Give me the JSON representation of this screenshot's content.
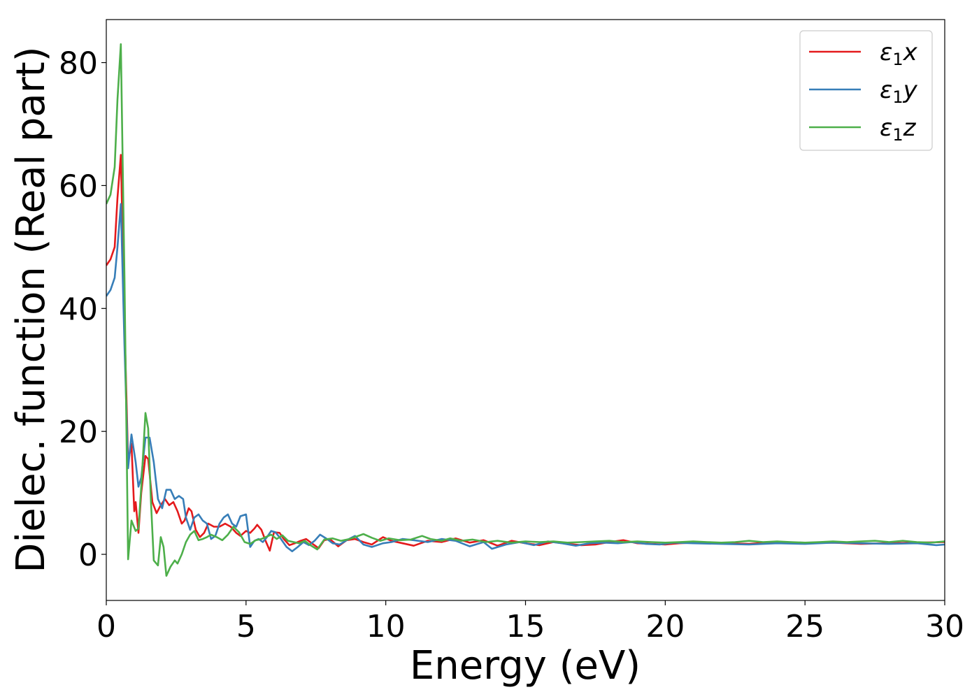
{
  "chart_data": {
    "type": "line",
    "title": "",
    "xlabel": "Energy (eV)",
    "ylabel": "Dielec. function (Real part)",
    "xlim": [
      0,
      30
    ],
    "ylim": [
      -7.5,
      87
    ],
    "xticks": [
      0,
      5,
      10,
      15,
      20,
      25,
      30
    ],
    "xtick_labels": [
      "0",
      "5",
      "10",
      "15",
      "20",
      "25",
      "30"
    ],
    "yticks": [
      0,
      20,
      40,
      60,
      80
    ],
    "ytick_labels": [
      "0",
      "20",
      "40",
      "60",
      "80"
    ],
    "grid": false,
    "legend_position": "top-right",
    "series": [
      {
        "name": "ε₁x",
        "legend": {
          "symbol": "ε",
          "sub": "1",
          "axis": "x"
        },
        "color": "#e41a1c",
        "x": [
          0,
          0.15,
          0.3,
          0.4,
          0.52,
          0.65,
          0.78,
          0.9,
          1.0,
          1.05,
          1.15,
          1.25,
          1.4,
          1.5,
          1.65,
          1.8,
          1.95,
          2.1,
          2.25,
          2.4,
          2.55,
          2.7,
          2.8,
          2.95,
          3.05,
          3.2,
          3.35,
          3.5,
          3.65,
          3.85,
          4.05,
          4.25,
          4.45,
          4.65,
          4.8,
          5.0,
          5.15,
          5.3,
          5.4,
          5.55,
          5.7,
          5.85,
          6.0,
          6.2,
          6.35,
          6.55,
          6.75,
          6.95,
          7.15,
          7.35,
          7.6,
          7.8,
          8.0,
          8.3,
          8.6,
          8.9,
          9.2,
          9.5,
          9.9,
          10.2,
          10.6,
          11.0,
          11.5,
          12.0,
          12.5,
          13.0,
          13.5,
          14.0,
          14.5,
          15.0,
          15.5,
          16.0,
          16.5,
          17.0,
          17.5,
          18.0,
          18.5,
          19.0,
          19.5,
          20.0,
          20.5,
          21.0,
          22.0,
          23.0,
          24.0,
          25.0,
          26.0,
          27.0,
          28.0,
          29.0,
          30.0
        ],
        "y": [
          47,
          48,
          50,
          58,
          65,
          38,
          15,
          18,
          7,
          8.5,
          3.5,
          10,
          16,
          15.5,
          8.5,
          6.7,
          8,
          9,
          8,
          8.5,
          7,
          5,
          5.5,
          7.5,
          7,
          4,
          2.8,
          3.5,
          5,
          4.5,
          4.5,
          5,
          4.5,
          3.5,
          3,
          3.8,
          3.5,
          4.2,
          4.8,
          4,
          2.2,
          0.6,
          3.6,
          3.5,
          2.5,
          1.5,
          1.8,
          2.2,
          2.5,
          1.8,
          1.0,
          2.3,
          2.5,
          1.3,
          2.3,
          2.5,
          2.0,
          1.6,
          2.8,
          2.2,
          1.8,
          1.4,
          2.2,
          2.0,
          2.6,
          1.9,
          2.3,
          1.4,
          2.2,
          1.8,
          1.5,
          2.0,
          1.7,
          1.5,
          1.6,
          2.0,
          2.3,
          1.8,
          1.7,
          1.6,
          1.8,
          1.9,
          1.8,
          1.7,
          2.0,
          1.8,
          1.9,
          1.7,
          1.8,
          1.9,
          2.0
        ]
      },
      {
        "name": "ε₁y",
        "legend": {
          "symbol": "ε",
          "sub": "1",
          "axis": "y"
        },
        "color": "#377eb8",
        "x": [
          0,
          0.15,
          0.3,
          0.4,
          0.52,
          0.65,
          0.78,
          0.9,
          1.05,
          1.15,
          1.25,
          1.4,
          1.55,
          1.7,
          1.85,
          2.0,
          2.15,
          2.3,
          2.45,
          2.6,
          2.75,
          2.85,
          3.0,
          3.15,
          3.3,
          3.45,
          3.6,
          3.75,
          3.9,
          4.05,
          4.2,
          4.35,
          4.5,
          4.65,
          4.8,
          5.0,
          5.15,
          5.3,
          5.45,
          5.6,
          5.75,
          5.9,
          6.05,
          6.25,
          6.45,
          6.65,
          6.85,
          7.05,
          7.25,
          7.45,
          7.65,
          7.9,
          8.1,
          8.35,
          8.6,
          8.9,
          9.2,
          9.5,
          9.9,
          10.2,
          10.6,
          11.0,
          11.5,
          12.0,
          12.5,
          13.0,
          13.5,
          13.8,
          14.3,
          14.8,
          15.3,
          15.8,
          16.3,
          16.8,
          17.3,
          17.8,
          18.3,
          18.8,
          19.3,
          19.8,
          20.3,
          21.0,
          22.0,
          23.0,
          24.0,
          25.0,
          26.0,
          27.0,
          28.0,
          29.0,
          29.7,
          30.0
        ],
        "y": [
          42,
          43,
          45,
          50,
          57,
          34,
          14,
          19.5,
          15,
          11,
          12.5,
          19,
          19,
          15,
          9,
          7.5,
          10.5,
          10.5,
          9,
          9.5,
          9,
          6,
          4,
          6,
          6.5,
          5.5,
          5,
          2.5,
          3,
          5,
          6,
          6.5,
          5,
          4.5,
          6.2,
          6.5,
          1.2,
          2.2,
          2.5,
          2,
          2.8,
          3.8,
          3.6,
          2.5,
          1.2,
          0.5,
          1.2,
          2.0,
          1.5,
          2.2,
          3.2,
          2.5,
          1.8,
          1.6,
          2.3,
          3.0,
          1.6,
          1.2,
          1.8,
          2.0,
          2.5,
          2.3,
          2.0,
          2.5,
          2.2,
          1.3,
          2.0,
          0.9,
          1.6,
          2.0,
          1.5,
          2.1,
          1.8,
          1.4,
          1.8,
          1.9,
          1.8,
          2.0,
          1.7,
          1.6,
          1.9,
          1.8,
          1.7,
          1.6,
          1.8,
          1.7,
          1.9,
          1.8,
          1.7,
          1.8,
          1.5,
          1.6
        ]
      },
      {
        "name": "ε₁z",
        "legend": {
          "symbol": "ε",
          "sub": "1",
          "axis": "z"
        },
        "color": "#4daf4a",
        "x": [
          0,
          0.15,
          0.3,
          0.4,
          0.52,
          0.65,
          0.78,
          0.9,
          1.05,
          1.15,
          1.25,
          1.4,
          1.5,
          1.6,
          1.7,
          1.85,
          1.95,
          2.05,
          2.15,
          2.3,
          2.45,
          2.55,
          2.7,
          2.85,
          3.0,
          3.15,
          3.3,
          3.45,
          3.6,
          3.75,
          3.95,
          4.15,
          4.35,
          4.55,
          4.75,
          4.95,
          5.15,
          5.35,
          5.55,
          5.7,
          5.9,
          6.1,
          6.3,
          6.5,
          6.7,
          6.9,
          7.1,
          7.3,
          7.55,
          7.8,
          8.1,
          8.4,
          8.7,
          8.9,
          9.2,
          9.5,
          9.8,
          10.1,
          10.5,
          10.9,
          11.3,
          11.6,
          12.0,
          12.3,
          12.7,
          13.1,
          13.6,
          14.0,
          14.5,
          15.0,
          15.5,
          16.0,
          16.5,
          17.0,
          17.5,
          18.0,
          18.5,
          19.0,
          19.5,
          20.0,
          20.5,
          21.0,
          21.5,
          22.0,
          22.5,
          23.0,
          23.5,
          24.0,
          24.5,
          25.0,
          25.5,
          26.0,
          26.5,
          27.0,
          27.5,
          28.0,
          28.5,
          29.0,
          29.5,
          30.0
        ],
        "y": [
          57,
          58.5,
          63,
          74,
          83,
          45,
          -0.8,
          5.5,
          3.8,
          4.2,
          11,
          23,
          20.5,
          8.5,
          -1,
          -1.8,
          2.8,
          1.2,
          -3.5,
          -2,
          -1,
          -1.5,
          0,
          2,
          3.2,
          3.8,
          2.3,
          2.5,
          2.8,
          3.2,
          2.8,
          2.3,
          3.2,
          4.5,
          3.6,
          2.0,
          1.7,
          2.3,
          2.5,
          2.8,
          3.2,
          2.5,
          3.1,
          2.2,
          2.0,
          1.8,
          2.2,
          1.5,
          0.8,
          2.4,
          2.6,
          2.2,
          2.5,
          2.8,
          3.3,
          2.7,
          2.2,
          2.6,
          2.3,
          2.4,
          3.0,
          2.5,
          2.2,
          2.6,
          2.2,
          2.4,
          2.0,
          2.2,
          1.9,
          2.1,
          2.0,
          2.1,
          1.9,
          2.0,
          2.1,
          2.2,
          2.0,
          2.1,
          2.0,
          1.9,
          2.0,
          2.1,
          2.0,
          1.9,
          2.0,
          2.2,
          2.0,
          2.1,
          2.0,
          1.9,
          2.0,
          2.1,
          2.0,
          2.1,
          2.2,
          2.0,
          2.2,
          2.0,
          1.9,
          2.1
        ]
      }
    ]
  }
}
